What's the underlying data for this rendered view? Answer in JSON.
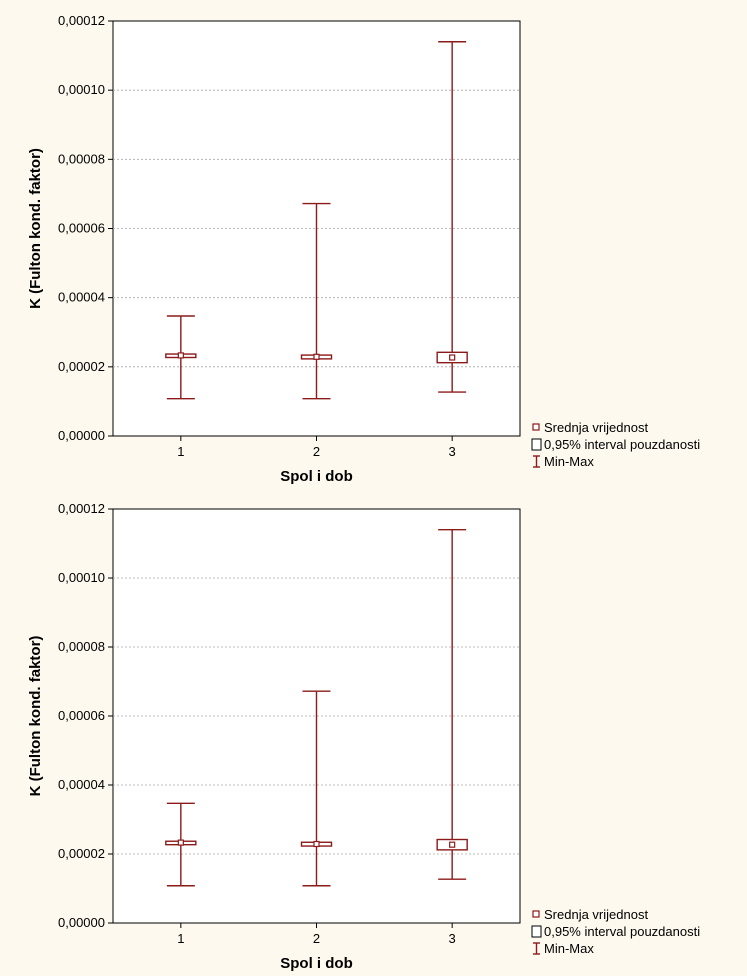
{
  "colors": {
    "series": "#8b1a1a",
    "page_background": "#fdf9ee",
    "plot_background": "#ffffff",
    "grid": "#a8a8a8"
  },
  "legend": {
    "placement": "bottom-right",
    "items": [
      {
        "symbol": "mean-square-icon",
        "label": "Srednja vrijednost"
      },
      {
        "symbol": "ci-box-icon",
        "label": "0,95% interval pouzdanosti"
      },
      {
        "symbol": "min-max-whisker-icon",
        "label": "Min-Max"
      }
    ]
  },
  "chart_data": [
    {
      "type": "box",
      "title": "",
      "xlabel": "Spol i dob",
      "ylabel": "K (Fulton kond. faktor)",
      "ylim": [
        0,
        0.00012
      ],
      "yticks": [
        0,
        2e-05,
        4e-05,
        6e-05,
        8e-05,
        0.0001,
        0.00012
      ],
      "ytick_labels": [
        "0,00000",
        "0,00002",
        "0,00004",
        "0,00006",
        "0,00008",
        "0,00010",
        "0,00012"
      ],
      "categories": [
        "1",
        "2",
        "3"
      ],
      "grid": true,
      "groups": [
        {
          "category": "1",
          "min": 1.08e-05,
          "max": 3.47e-05,
          "ci_low": 2.27e-05,
          "ci_high": 2.37e-05,
          "mean": 2.33e-05
        },
        {
          "category": "2",
          "min": 1.08e-05,
          "max": 6.72e-05,
          "ci_low": 2.23e-05,
          "ci_high": 2.34e-05,
          "mean": 2.29e-05
        },
        {
          "category": "3",
          "min": 1.27e-05,
          "max": 0.000114,
          "ci_low": 2.12e-05,
          "ci_high": 2.42e-05,
          "mean": 2.27e-05
        }
      ]
    },
    {
      "type": "box",
      "title": "",
      "xlabel": "Spol i dob",
      "ylabel": "K (Fulton kond. faktor)",
      "ylim": [
        0,
        0.00012
      ],
      "yticks": [
        0,
        2e-05,
        4e-05,
        6e-05,
        8e-05,
        0.0001,
        0.00012
      ],
      "ytick_labels": [
        "0,00000",
        "0,00002",
        "0,00004",
        "0,00006",
        "0,00008",
        "0,00010",
        "0,00012"
      ],
      "categories": [
        "1",
        "2",
        "3"
      ],
      "grid": true,
      "groups": [
        {
          "category": "1",
          "min": 1.08e-05,
          "max": 3.47e-05,
          "ci_low": 2.27e-05,
          "ci_high": 2.37e-05,
          "mean": 2.33e-05
        },
        {
          "category": "2",
          "min": 1.08e-05,
          "max": 6.72e-05,
          "ci_low": 2.23e-05,
          "ci_high": 2.34e-05,
          "mean": 2.29e-05
        },
        {
          "category": "3",
          "min": 1.27e-05,
          "max": 0.000114,
          "ci_low": 2.12e-05,
          "ci_high": 2.42e-05,
          "mean": 2.27e-05
        }
      ]
    }
  ]
}
